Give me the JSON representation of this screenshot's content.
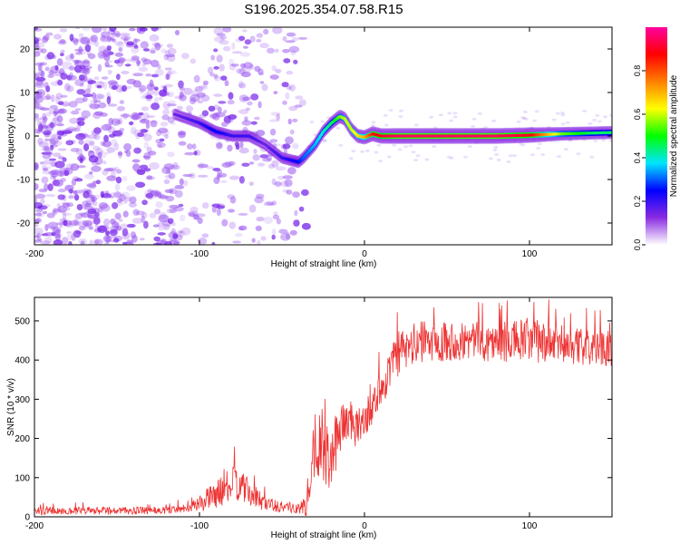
{
  "title": "S196.2025.354.07.58.R15",
  "chart_data": [
    {
      "type": "heatmap",
      "title": "",
      "xlabel": "Height of straight line (km)",
      "ylabel": "Frequency (Hz)",
      "xlim": [
        -200,
        150
      ],
      "ylim": [
        -25,
        25
      ],
      "x_ticks": [
        -200,
        -100,
        0,
        100
      ],
      "y_ticks": [
        -20,
        -10,
        0,
        10,
        20
      ],
      "x_tick_labels": [
        "-200",
        "-100",
        "0",
        "100"
      ],
      "y_tick_labels": [
        "-20",
        "-10",
        "0",
        "10",
        "20"
      ],
      "colorbar": {
        "label": "Normalized spectral amplitude",
        "range": [
          0.0,
          1.0
        ],
        "ticks": [
          0.0,
          0.2,
          0.4,
          0.6,
          0.8
        ],
        "tick_labels": [
          "0.0",
          "0.2",
          "0.4",
          "0.6",
          "0.8"
        ],
        "colormap": [
          "#ffffff",
          "#8a2be2",
          "#0000ff",
          "#00e5ff",
          "#00ff00",
          "#ffff00",
          "#ff8000",
          "#ff0000",
          "#ff00a0"
        ]
      },
      "ridge": {
        "description_free": true,
        "x": [
          -115,
          -100,
          -90,
          -80,
          -70,
          -60,
          -50,
          -40,
          -37,
          -30,
          -25,
          -20,
          -15,
          -12,
          -8,
          -4,
          0,
          5,
          10,
          20,
          40,
          60,
          80,
          100,
          120,
          140,
          150
        ],
        "y": [
          5,
          3,
          1,
          0,
          0,
          -2,
          -5,
          -6,
          -5,
          -2,
          1,
          3,
          4.5,
          4,
          1.5,
          0,
          -0.3,
          0.5,
          0,
          0,
          0,
          0,
          0,
          0.2,
          0.5,
          0.7,
          0.8
        ],
        "amplitude": [
          0.15,
          0.2,
          0.25,
          0.2,
          0.2,
          0.15,
          0.2,
          0.25,
          0.3,
          0.35,
          0.4,
          0.45,
          0.55,
          0.6,
          0.6,
          0.65,
          0.7,
          0.85,
          0.9,
          0.95,
          0.95,
          0.95,
          0.95,
          0.9,
          0.55,
          0.45,
          0.45
        ]
      }
    },
    {
      "type": "line",
      "title": "",
      "xlabel": "Height of straight line (km)",
      "ylabel": "SNR (10 * v/v)",
      "xlim": [
        -200,
        150
      ],
      "ylim": [
        0,
        560
      ],
      "x_ticks": [
        -200,
        -100,
        0,
        100
      ],
      "y_ticks": [
        0,
        100,
        200,
        300,
        400,
        500
      ],
      "x_tick_labels": [
        "-200",
        "-100",
        "0",
        "100"
      ],
      "y_tick_labels": [
        "0",
        "100",
        "200",
        "300",
        "400",
        "500"
      ],
      "color": "#ee3333",
      "series": [
        {
          "name": "SNR",
          "x": [
            -200,
            -180,
            -160,
            -140,
            -120,
            -105,
            -95,
            -85,
            -80,
            -75,
            -70,
            -60,
            -50,
            -40,
            -35,
            -30,
            -25,
            -20,
            -15,
            -10,
            -5,
            0,
            5,
            10,
            15,
            20,
            30,
            40,
            60,
            80,
            100,
            120,
            140,
            150
          ],
          "y": [
            15,
            15,
            15,
            15,
            17,
            25,
            45,
            70,
            85,
            80,
            60,
            35,
            25,
            20,
            25,
            200,
            160,
            140,
            230,
            250,
            220,
            250,
            280,
            330,
            370,
            410,
            440,
            450,
            450,
            445,
            450,
            440,
            430,
            430
          ],
          "noise_amplitude": [
            10,
            10,
            10,
            10,
            10,
            12,
            30,
            40,
            45,
            40,
            35,
            20,
            15,
            12,
            30,
            90,
            80,
            80,
            70,
            60,
            50,
            45,
            45,
            50,
            55,
            55,
            55,
            55,
            50,
            50,
            60,
            50,
            45,
            45
          ]
        }
      ]
    }
  ]
}
